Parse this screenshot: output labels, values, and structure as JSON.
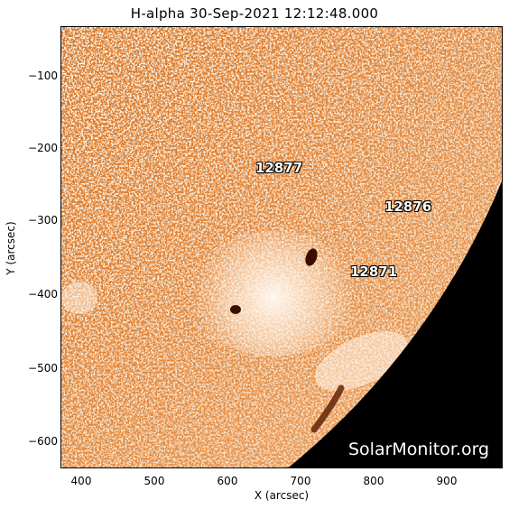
{
  "title": "H-alpha 30-Sep-2021 12:12:48.000",
  "x_axis": {
    "label": "X (arcsec)",
    "ticks": [
      "400",
      "500",
      "600",
      "700",
      "800",
      "900"
    ]
  },
  "y_axis": {
    "label": "Y (arcsec)",
    "ticks": [
      "−100",
      "−200",
      "−300",
      "−400",
      "−500",
      "−600"
    ]
  },
  "active_regions": [
    {
      "number": "12877"
    },
    {
      "number": "12876"
    },
    {
      "number": "12871"
    }
  ],
  "watermark": "SolarMonitor.org",
  "colors": {
    "disk": "#e8741c",
    "plage": "#fff4e8",
    "space": "#000000",
    "spots": "#4a1400"
  }
}
